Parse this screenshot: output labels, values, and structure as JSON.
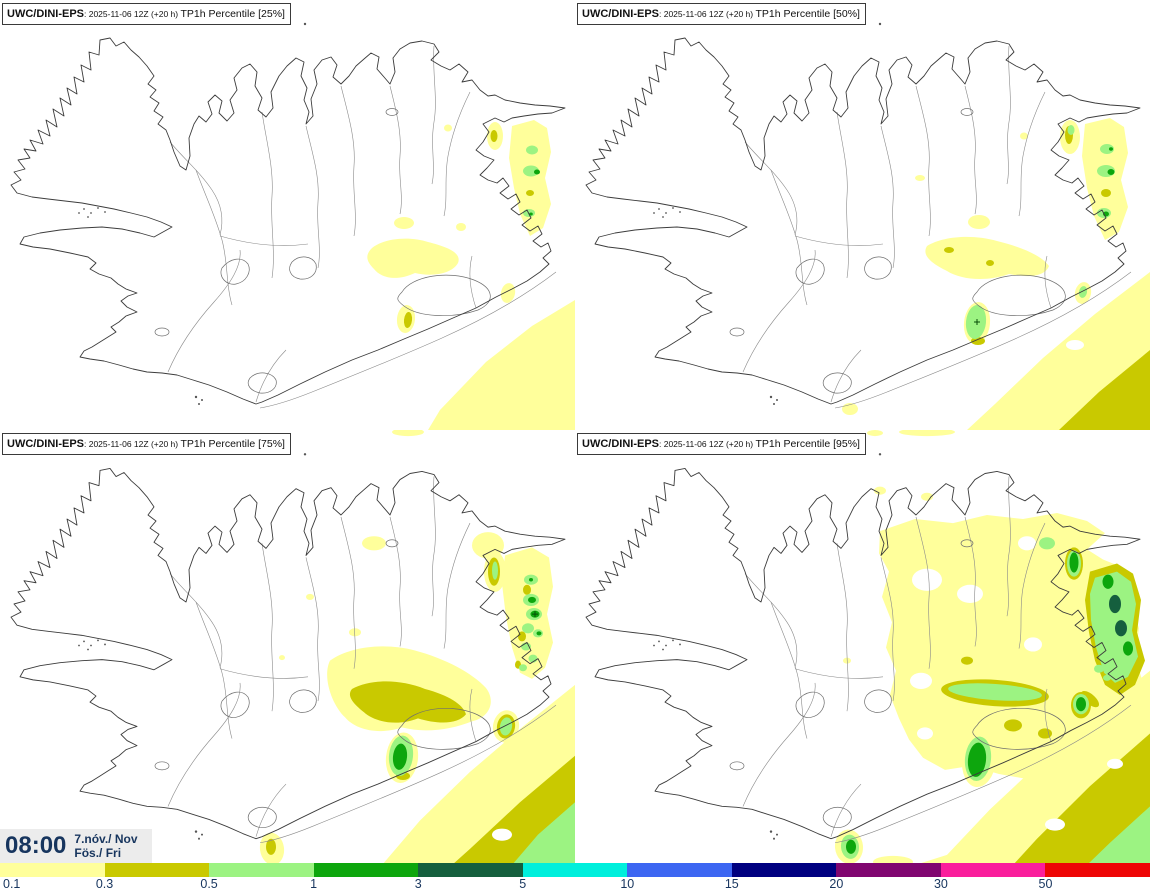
{
  "panels": [
    {
      "model": "UWC/DINI-EPS",
      "run": ": 2025-11-06 12Z (+20 h) ",
      "product": "TP1h Percentile [25%]"
    },
    {
      "model": "UWC/DINI-EPS",
      "run": ": 2025-11-06 12Z (+20 h) ",
      "product": "TP1h Percentile [50%]"
    },
    {
      "model": "UWC/DINI-EPS",
      "run": ": 2025-11-06 12Z (+20 h) ",
      "product": "TP1h Percentile [75%]"
    },
    {
      "model": "UWC/DINI-EPS",
      "run": ": 2025-11-06 12Z (+20 h) ",
      "product": "TP1h Percentile [95%]"
    }
  ],
  "timestamp": {
    "time": "08:00",
    "date_line1": "7.nóv./ Nov",
    "date_line2": "Fös./ Fri"
  },
  "colorbar": {
    "labels": [
      "0.1",
      "0.3",
      "0.5",
      "1",
      "3",
      "5",
      "10",
      "15",
      "20",
      "30",
      "50"
    ],
    "colors": [
      "#FFFF9B",
      "#C9C900",
      "#9CF382",
      "#0DA60D",
      "#155F3E",
      "#00EFDC",
      "#3C66F2",
      "#000080",
      "#800570",
      "#FA1E9C",
      "#EE0505"
    ]
  },
  "palette": {
    "yellow": "#FFFF9B",
    "olive": "#C9C900",
    "light_green": "#9CF382",
    "green": "#0DA60D",
    "dark_green": "#155F3E",
    "label_color": "#17355E"
  }
}
